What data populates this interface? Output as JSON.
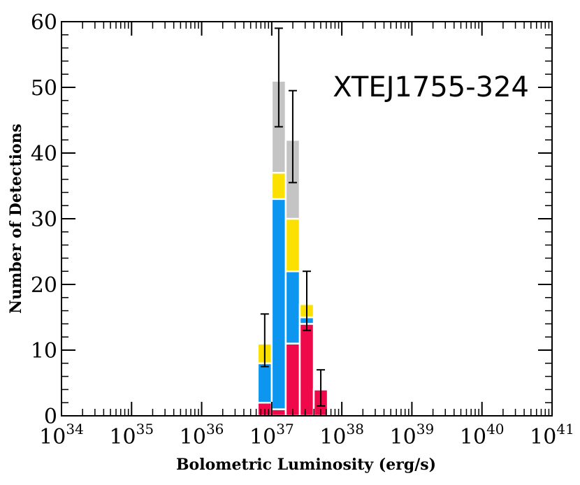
{
  "chart_data": {
    "type": "bar",
    "stacked": true,
    "annotation": "XTEJ1755-324",
    "xlabel": "Bolometric Luminosity (erg/s)",
    "ylabel": "Number of Detections",
    "x_scale": "log",
    "xlim": [
      1e+34,
      1e+41
    ],
    "ylim": [
      0,
      60
    ],
    "x_ticks": [
      {
        "base": "10",
        "exp": "34"
      },
      {
        "base": "10",
        "exp": "35"
      },
      {
        "base": "10",
        "exp": "36"
      },
      {
        "base": "10",
        "exp": "37"
      },
      {
        "base": "10",
        "exp": "38"
      },
      {
        "base": "10",
        "exp": "39"
      },
      {
        "base": "10",
        "exp": "40"
      },
      {
        "base": "10",
        "exp": "41"
      }
    ],
    "y_ticks": [
      "0",
      "10",
      "20",
      "30",
      "40",
      "50",
      "60"
    ],
    "bin_edges_log10": [
      36.8,
      37.0,
      37.2,
      37.4,
      37.6,
      37.8
    ],
    "series": [
      {
        "color": "#f0094a",
        "values": [
          2,
          1,
          11,
          14,
          4
        ]
      },
      {
        "color": "#0c96f0",
        "values": [
          6,
          32,
          11,
          1,
          0
        ]
      },
      {
        "color": "#fce000",
        "values": [
          3,
          4,
          8,
          2,
          0
        ]
      },
      {
        "color": "#c4c4c4",
        "values": [
          0,
          14,
          12,
          0,
          0
        ]
      }
    ],
    "error_bars": [
      {
        "low": 7.5,
        "high": 15.5
      },
      {
        "low": 44,
        "high": 59
      },
      {
        "low": 35.5,
        "high": 49.5
      },
      {
        "low": 13,
        "high": 22
      },
      {
        "low": 1.5,
        "high": 7
      }
    ],
    "grid": false
  }
}
